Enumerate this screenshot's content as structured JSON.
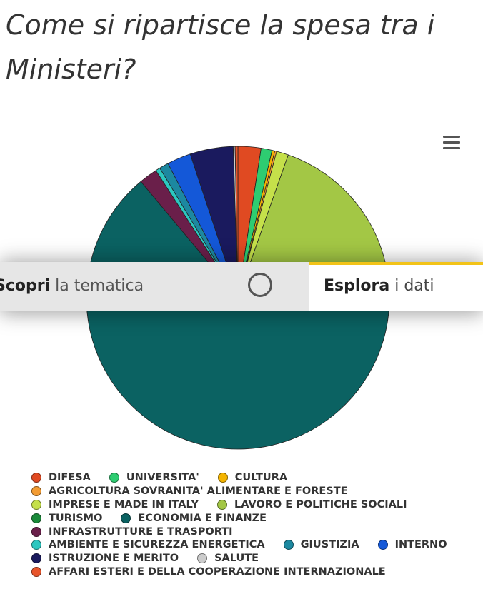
{
  "page": {
    "title": "Come si ripartisce la spesa tra i Ministeri?"
  },
  "nav": {
    "left_bold": "Scopri",
    "left_light": "la tematica",
    "right_bold": "Esplora",
    "right_light": "i dati"
  },
  "icons": {
    "menu": "hamburger-menu-icon",
    "toggle": "circle-toggle-icon"
  },
  "colors": {
    "accent": "#f2c318"
  },
  "chart_data": {
    "type": "pie",
    "title": "",
    "start_angle_deg": 0,
    "slices": [
      {
        "name": "DIFESA",
        "value": 2.5,
        "color": "#e04a22"
      },
      {
        "name": "UNIVERSITA'",
        "value": 1.2,
        "color": "#2ecc71"
      },
      {
        "name": "CULTURA",
        "value": 0.3,
        "color": "#f4b400"
      },
      {
        "name": "AGRICOLTURA SOVRANITA' ALIMENTARE E FORESTE",
        "value": 0.2,
        "color": "#f39c33"
      },
      {
        "name": "IMPRESE E MADE IN ITALY",
        "value": 1.3,
        "color": "#c5e04a"
      },
      {
        "name": "LAVORO E POLITICHE SOCIALI",
        "value": 16.2,
        "color": "#a3c745"
      },
      {
        "name": "TURISMO",
        "value": 0.05,
        "color": "#1a8a3a"
      },
      {
        "name": "ECONOMIA E FINANZE",
        "value": 69.0,
        "color": "#0b6262"
      },
      {
        "name": "INFRASTRUTTURE E TRASPORTI",
        "value": 2.0,
        "color": "#6a1f4a"
      },
      {
        "name": "AMBIENTE E SICUREZZA ENERGETICA",
        "value": 0.5,
        "color": "#2cc7c0"
      },
      {
        "name": "GIUSTIZIA",
        "value": 1.0,
        "color": "#1c88a0"
      },
      {
        "name": "INTERNO",
        "value": 2.6,
        "color": "#1458d8"
      },
      {
        "name": "ISTRUZIONE E MERITO",
        "value": 4.7,
        "color": "#1a1a5e"
      },
      {
        "name": "SALUTE",
        "value": 0.2,
        "color": "#cccccc"
      },
      {
        "name": "AFFARI ESTERI E DELLA COOPERAZIONE INTERNAZIONALE",
        "value": 0.3,
        "color": "#e8552b"
      }
    ],
    "legend_rows": [
      [
        "DIFESA",
        "UNIVERSITA'",
        "CULTURA"
      ],
      [
        "AGRICOLTURA SOVRANITA' ALIMENTARE E FORESTE"
      ],
      [
        "IMPRESE E MADE IN ITALY",
        "LAVORO E POLITICHE SOCIALI"
      ],
      [
        "TURISMO",
        "ECONOMIA E FINANZE"
      ],
      [
        "INFRASTRUTTURE E TRASPORTI"
      ],
      [
        "AMBIENTE E SICUREZZA ENERGETICA",
        "GIUSTIZIA",
        "INTERNO"
      ],
      [
        "ISTRUZIONE E MERITO",
        "SALUTE"
      ],
      [
        "AFFARI ESTERI E DELLA COOPERAZIONE INTERNAZIONALE"
      ]
    ],
    "legend_position": "bottom"
  }
}
